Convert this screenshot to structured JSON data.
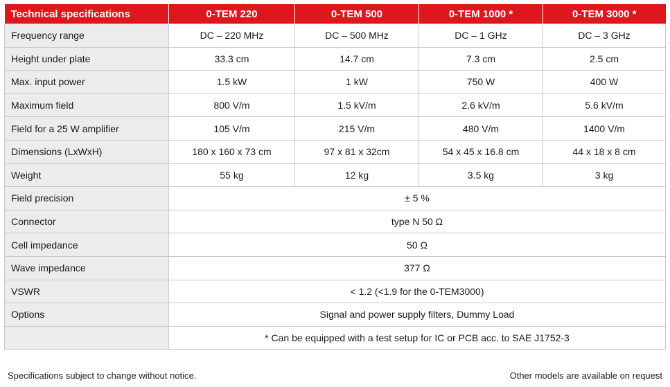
{
  "header": {
    "title": "Technical specifications",
    "models": [
      "0-TEM 220",
      "0-TEM 500",
      "0-TEM 1000 *",
      "0-TEM 3000 *"
    ]
  },
  "rows": [
    {
      "label": "Frequency range",
      "values": [
        "DC – 220 MHz",
        "DC – 500 MHz",
        "DC – 1 GHz",
        "DC – 3 GHz"
      ]
    },
    {
      "label": "Height under plate",
      "values": [
        "33.3 cm",
        "14.7 cm",
        "7.3 cm",
        "2.5 cm"
      ]
    },
    {
      "label": "Max. input power",
      "values": [
        "1.5 kW",
        "1 kW",
        "750 W",
        "400 W"
      ]
    },
    {
      "label": "Maximum field",
      "values": [
        "800 V/m",
        "1.5 kV/m",
        "2.6 kV/m",
        "5.6 kV/m"
      ]
    },
    {
      "label": "Field for a 25 W amplifier",
      "values": [
        "105 V/m",
        "215 V/m",
        "480 V/m",
        "1400 V/m"
      ]
    },
    {
      "label": "Dimensions (LxWxH)",
      "values": [
        "180 x 160 x 73 cm",
        "97 x 81 x 32cm",
        "54 x 45 x 16.8 cm",
        "44 x 18 x 8 cm"
      ]
    },
    {
      "label": "Weight",
      "values": [
        "55 kg",
        "12 kg",
        "3.5 kg",
        "3 kg"
      ]
    }
  ],
  "shared_rows": [
    {
      "label": "Field precision",
      "value": "± 5 %"
    },
    {
      "label": "Connector",
      "value": "type N  50 Ω"
    },
    {
      "label": "Cell impedance",
      "value": "50 Ω"
    },
    {
      "label": "Wave impedance",
      "value": "377 Ω"
    },
    {
      "label": "VSWR",
      "value": "< 1.2 (<1.9 for the 0-TEM3000)"
    },
    {
      "label": "Options",
      "value": "Signal and power supply filters, Dummy Load"
    }
  ],
  "note": "* Can be equipped with a test setup for IC or PCB acc. to SAE J1752-3",
  "footer": {
    "left": "Specifications subject to change without notice.",
    "right": "Other models are available on request"
  },
  "colors": {
    "header_red": "#e0161d",
    "label_gray": "#ececec",
    "border": "#c9c9c9"
  }
}
